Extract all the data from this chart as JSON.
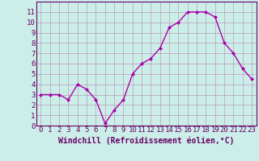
{
  "x": [
    0,
    1,
    2,
    3,
    4,
    5,
    6,
    7,
    8,
    9,
    10,
    11,
    12,
    13,
    14,
    15,
    16,
    17,
    18,
    19,
    20,
    21,
    22,
    23
  ],
  "y": [
    3,
    3,
    3,
    2.5,
    4,
    3.5,
    2.5,
    0.2,
    1.5,
    2.5,
    5,
    6,
    6.5,
    7.5,
    9.5,
    10,
    11,
    11,
    11,
    10.5,
    8,
    7,
    5.5,
    4.5
  ],
  "line_color": "#aa00aa",
  "marker": "D",
  "marker_size": 2.0,
  "background_color": "#cceee8",
  "grid_color": "#bb99bb",
  "xlabel": "Windchill (Refroidissement éolien,°C)",
  "xlabel_fontsize": 7,
  "xlim": [
    -0.5,
    23.5
  ],
  "ylim": [
    0,
    12
  ],
  "yticks": [
    0,
    1,
    2,
    3,
    4,
    5,
    6,
    7,
    8,
    9,
    10,
    11
  ],
  "xticks": [
    0,
    1,
    2,
    3,
    4,
    5,
    6,
    7,
    8,
    9,
    10,
    11,
    12,
    13,
    14,
    15,
    16,
    17,
    18,
    19,
    20,
    21,
    22,
    23
  ],
  "tick_fontsize": 6.5,
  "line_width": 1.0,
  "spine_color": "#660066",
  "text_color": "#660066"
}
